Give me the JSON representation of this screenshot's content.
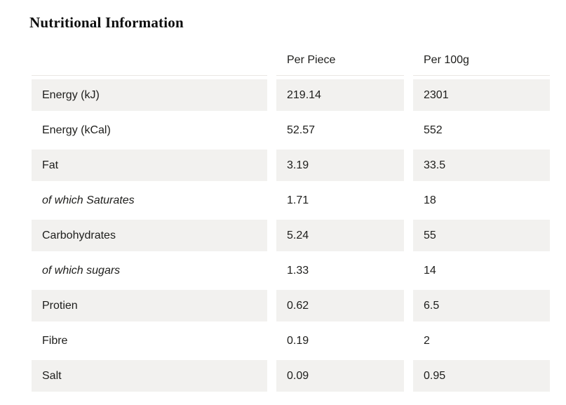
{
  "title": "Nutritional Information",
  "table": {
    "columns": [
      "Per Piece",
      "Per 100g"
    ],
    "rows": [
      {
        "label": "Energy (kJ)",
        "per_piece": "219.14",
        "per_100g": "2301"
      },
      {
        "label": "Energy (kCal)",
        "per_piece": "52.57",
        "per_100g": "552"
      },
      {
        "label": "Fat",
        "per_piece": "3.19",
        "per_100g": "33.5"
      },
      {
        "label": "of which Saturates",
        "per_piece": "1.71",
        "per_100g": "18"
      },
      {
        "label": "Carbohydrates",
        "per_piece": "5.24",
        "per_100g": "55"
      },
      {
        "label": "of which sugars",
        "per_piece": "1.33",
        "per_100g": "14"
      },
      {
        "label": "Protien",
        "per_piece": "0.62",
        "per_100g": "6.5"
      },
      {
        "label": "Fibre",
        "per_piece": "0.19",
        "per_100g": "2"
      },
      {
        "label": "Salt",
        "per_piece": "0.09",
        "per_100g": "0.95"
      }
    ]
  },
  "colors": {
    "row_alt_background": "#f2f1ef",
    "text": "#1d1d1b",
    "header_underline": "#e9e7e4",
    "title": "#0d0d0d"
  }
}
